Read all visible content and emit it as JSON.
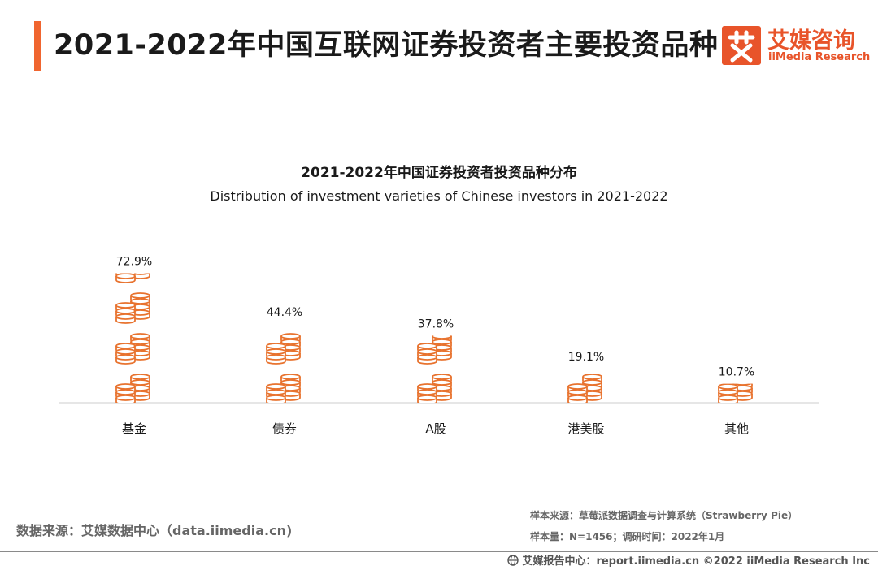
{
  "header": {
    "title": "2021-2022年中国互联网证券投资者主要投资品种",
    "logo_cn": "艾媒咨询",
    "logo_en": "iiMedia Research"
  },
  "chart_data": {
    "type": "bar",
    "title": "2021-2022年中国证券投资者投资品种分布",
    "subtitle": "Distribution of  investment varieties of Chinese investors in 2021-2022",
    "categories": [
      "基金",
      "债券",
      "A股",
      "港美股",
      "其他"
    ],
    "values": [
      72.9,
      44.4,
      37.8,
      19.1,
      10.7
    ],
    "data_labels": [
      "72.9%",
      "44.4%",
      "37.8%",
      "19.1%",
      "10.7%"
    ],
    "unit": "%",
    "ylim": [
      0,
      80
    ],
    "grid": false,
    "legend": "none",
    "mark_style": "stacked-coin-icons",
    "colors": {
      "coin_stroke": "#e8732f",
      "axis": "#cccccc"
    }
  },
  "sources": {
    "left": "数据来源：艾媒数据中心（data.iimedia.cn)",
    "sample_source": "样本来源：草莓派数据调查与计算系统（Strawberry Pie）",
    "sample_size": "样本量：N=1456；调研时间：2022年1月"
  },
  "footer": {
    "icon": "globe-icon",
    "text": "艾媒报告中心：report.iimedia.cn  ©2022  iiMedia Research  Inc"
  }
}
